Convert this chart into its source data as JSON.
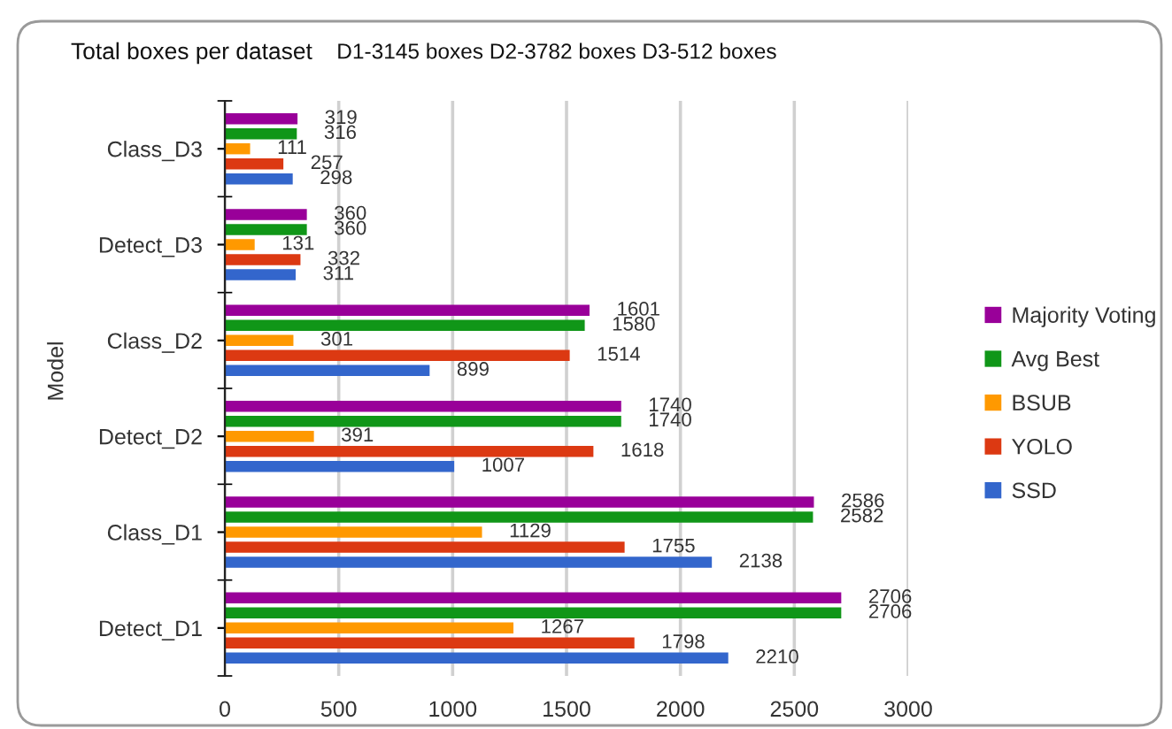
{
  "chart_data": {
    "type": "bar",
    "orientation": "horizontal",
    "title": "Total boxes per dataset",
    "subtitle": "D1-3145 boxes D2-3782 boxes D3-512 boxes",
    "ylabel": "Model",
    "categories": [
      "Class_D3",
      "Detect_D3",
      "Class_D2",
      "Detect_D2",
      "Class_D1",
      "Detect_D1"
    ],
    "series": [
      {
        "name": "Majority Voting",
        "color": "#990099",
        "values": [
          319,
          360,
          1601,
          1740,
          2586,
          2706
        ]
      },
      {
        "name": "Avg Best",
        "color": "#109618",
        "values": [
          316,
          360,
          1580,
          1740,
          2582,
          2706
        ]
      },
      {
        "name": "BSUB",
        "color": "#ff9900",
        "values": [
          111,
          131,
          301,
          391,
          1129,
          1267
        ]
      },
      {
        "name": "YOLO",
        "color": "#dc3912",
        "values": [
          257,
          332,
          1514,
          1618,
          1755,
          1798
        ]
      },
      {
        "name": "SSD",
        "color": "#3366cc",
        "values": [
          298,
          311,
          899,
          1007,
          2138,
          2210
        ]
      }
    ],
    "xlim": [
      0,
      3000
    ],
    "xticks": [
      0,
      500,
      1000,
      1500,
      2000,
      2500,
      3000
    ],
    "grid": "x",
    "legend": "right",
    "data_labels": true
  }
}
